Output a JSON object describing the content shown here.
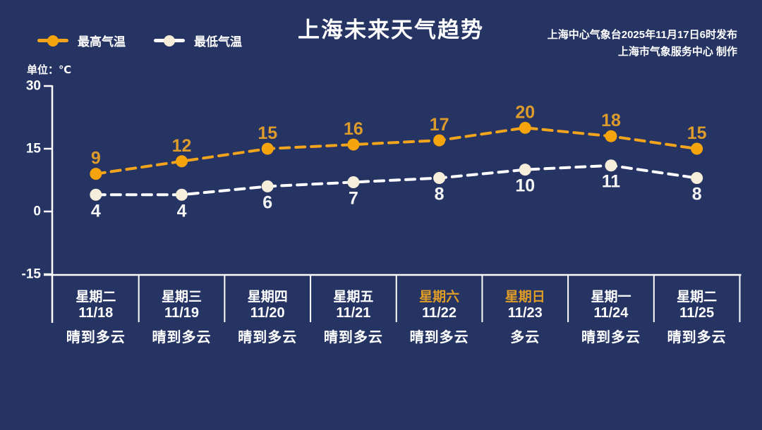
{
  "header": {
    "title": "上海未来天气趋势",
    "publisher_line1": "上海中心气象台2025年11月17日6时发布",
    "publisher_line2": "上海市气象服务中心  制作"
  },
  "legend": {
    "high_label": "最高气温",
    "low_label": "最低气温"
  },
  "axis": {
    "unit_label": "单位：℃",
    "y_ticks": [
      30,
      15,
      0,
      -15
    ]
  },
  "colors": {
    "background": "#253463",
    "axis_line": "#ffffff",
    "high_line": "#F2A41C",
    "high_marker": "#F5A40E",
    "high_value_text": "#DC9B2B",
    "low_line": "#FFFFFF",
    "low_marker": "#F6EEDA",
    "low_value_text": "#F5F5F5",
    "weekend_text": "#DF9D28",
    "text": "#FFFFFF"
  },
  "chart_data": {
    "type": "line",
    "title": "上海未来天气趋势",
    "categories": [
      "11/18",
      "11/19",
      "11/20",
      "11/21",
      "11/22",
      "11/23",
      "11/24",
      "11/25"
    ],
    "series": [
      {
        "name": "最高气温",
        "values": [
          9,
          12,
          15,
          16,
          17,
          20,
          18,
          15
        ]
      },
      {
        "name": "最低气温",
        "values": [
          4,
          4,
          6,
          7,
          8,
          10,
          11,
          8
        ]
      }
    ],
    "ylabel": "℃",
    "ylim": [
      -15,
      30
    ],
    "y_ticks": [
      30,
      15,
      0,
      -15
    ],
    "line_style": "dashed",
    "grid": false,
    "legend_position": "top-left"
  },
  "days": [
    {
      "weekday": "星期二",
      "date": "11/18",
      "weather": "晴到多云",
      "weekend": false
    },
    {
      "weekday": "星期三",
      "date": "11/19",
      "weather": "晴到多云",
      "weekend": false
    },
    {
      "weekday": "星期四",
      "date": "11/20",
      "weather": "晴到多云",
      "weekend": false
    },
    {
      "weekday": "星期五",
      "date": "11/21",
      "weather": "晴到多云",
      "weekend": false
    },
    {
      "weekday": "星期六",
      "date": "11/22",
      "weather": "晴到多云",
      "weekend": true
    },
    {
      "weekday": "星期日",
      "date": "11/23",
      "weather": "多云",
      "weekend": true
    },
    {
      "weekday": "星期一",
      "date": "11/24",
      "weather": "晴到多云",
      "weekend": false
    },
    {
      "weekday": "星期二",
      "date": "11/25",
      "weather": "晴到多云",
      "weekend": false
    }
  ]
}
